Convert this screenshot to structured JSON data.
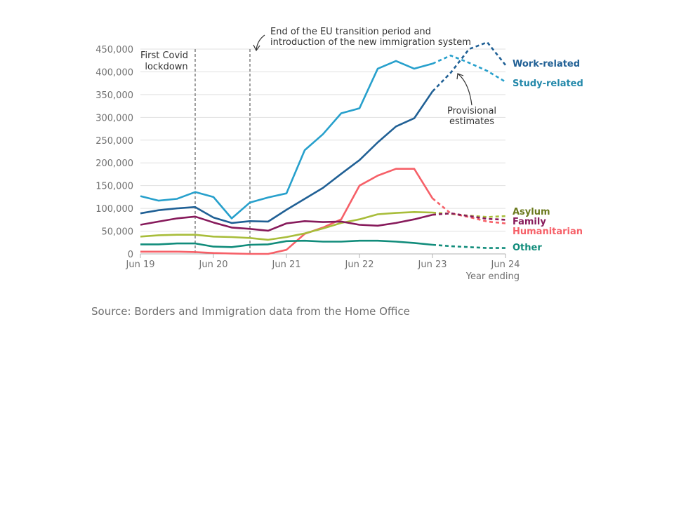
{
  "chart_data": {
    "type": "line",
    "title": "",
    "xlabel": "Year ending",
    "ylabel": "",
    "ylim": [
      0,
      450000
    ],
    "yticks": [
      0,
      50000,
      100000,
      150000,
      200000,
      250000,
      300000,
      350000,
      400000,
      450000
    ],
    "ytick_labels": [
      "0",
      "50,000",
      "100,000",
      "150,000",
      "200,000",
      "250,000",
      "300,000",
      "350,000",
      "400,000",
      "450,000"
    ],
    "xtick_labels": [
      "Jun 19",
      "Jun 20",
      "Jun 21",
      "Jun 22",
      "Jun 23",
      "Jun 24"
    ],
    "x": [
      "Jun 19",
      "Sep 19",
      "Dec 19",
      "Mar 20",
      "Jun 20",
      "Sep 20",
      "Dec 20",
      "Mar 21",
      "Jun 21",
      "Sep 21",
      "Dec 21",
      "Mar 22",
      "Jun 22",
      "Sep 22",
      "Dec 22",
      "Mar 23",
      "Jun 23",
      "Sep 23",
      "Dec 23",
      "Mar 24",
      "Jun 24"
    ],
    "provisional_from": "Jun 23",
    "grid": true,
    "series": [
      {
        "name": "Work-related",
        "color": "#206095",
        "values": [
          89000,
          96000,
          100000,
          103000,
          80000,
          68000,
          72000,
          71000,
          97000,
          121000,
          145000,
          176000,
          206000,
          245000,
          280000,
          298000,
          357000,
          398000,
          450000,
          465000,
          415000
        ]
      },
      {
        "name": "Study-related",
        "color": "#27a0cc",
        "values": [
          127000,
          117000,
          121000,
          136000,
          125000,
          78000,
          113000,
          124000,
          133000,
          228000,
          263000,
          309000,
          320000,
          407000,
          424000,
          407000,
          418000,
          436000,
          420000,
          402000,
          378000
        ]
      },
      {
        "name": "Asylum",
        "color": "#a8bd3a",
        "values": [
          38000,
          41000,
          42000,
          42000,
          38000,
          37000,
          35000,
          31000,
          37000,
          45000,
          56000,
          68000,
          76000,
          87000,
          90000,
          92000,
          91000,
          88000,
          84000,
          81000,
          83000
        ]
      },
      {
        "name": "Family",
        "color": "#871a5b",
        "values": [
          64000,
          71000,
          78000,
          82000,
          69000,
          58000,
          55000,
          51000,
          67000,
          72000,
          70000,
          71000,
          64000,
          62000,
          68000,
          76000,
          86000,
          89000,
          83000,
          77000,
          75000
        ]
      },
      {
        "name": "Humanitarian",
        "color": "#f66068",
        "values": [
          5000,
          5000,
          5000,
          4000,
          2000,
          1000,
          0,
          0,
          9000,
          44000,
          58000,
          76000,
          150000,
          172000,
          187000,
          187000,
          122000,
          89000,
          81000,
          71000,
          67000
        ]
      },
      {
        "name": "Other",
        "color": "#118c7b",
        "values": [
          21000,
          21000,
          23000,
          23000,
          16000,
          15000,
          20000,
          21000,
          28000,
          29000,
          27000,
          27000,
          29000,
          29000,
          27000,
          24000,
          20000,
          17000,
          15000,
          13000,
          13000
        ]
      }
    ],
    "annotations": [
      {
        "text": [
          "First Covid",
          "lockdown"
        ],
        "at": "Mar 20"
      },
      {
        "text": [
          "End of the EU transition period and",
          "introduction of the new immigration system"
        ],
        "at": "Dec 20"
      },
      {
        "text": [
          "Provisional",
          "estimates"
        ]
      }
    ]
  },
  "source_text": "Source: Borders and Immigration data from the Home Office"
}
